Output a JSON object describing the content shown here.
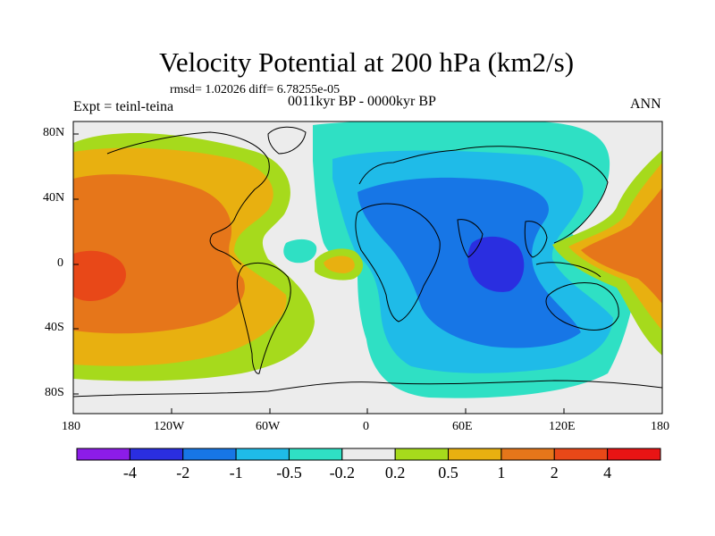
{
  "title": "Velocity Potential at 200 hPa (km2/s)",
  "stats_line": "rmsd= 1.02026 diff= 6.78255e-05",
  "experiment": "Expt = teinl-teina",
  "period": "0011kyr BP - 0000kyr BP",
  "season": "ANN",
  "y_axis_labels": [
    "80N",
    "40N",
    "0",
    "40S",
    "80S"
  ],
  "x_axis_labels": [
    "180",
    "120W",
    "60W",
    "0",
    "60E",
    "120E",
    "180"
  ],
  "colorbar": {
    "colors": [
      "#8c1ce8",
      "#2a2ee0",
      "#1776e6",
      "#1fbbe8",
      "#2fe0c4",
      "#ececec",
      "#a6da1c",
      "#e8b010",
      "#e6761a",
      "#e84818",
      "#e81414"
    ],
    "labels": [
      "-4",
      "-2",
      "-1",
      "-0.5",
      "-0.2",
      "0.2",
      "0.5",
      "1",
      "2",
      "4"
    ]
  },
  "colors": {
    "neutral": "#ececec",
    "pos_weak": "#a6da1c",
    "pos_mid": "#e8b010",
    "pos_strong": "#e6761a",
    "pos_stronger": "#e84818",
    "neg_weak": "#2fe0c4",
    "neg_mid": "#1fbbe8",
    "neg_strong": "#1776e6",
    "neg_stronger": "#2a2ee0"
  }
}
